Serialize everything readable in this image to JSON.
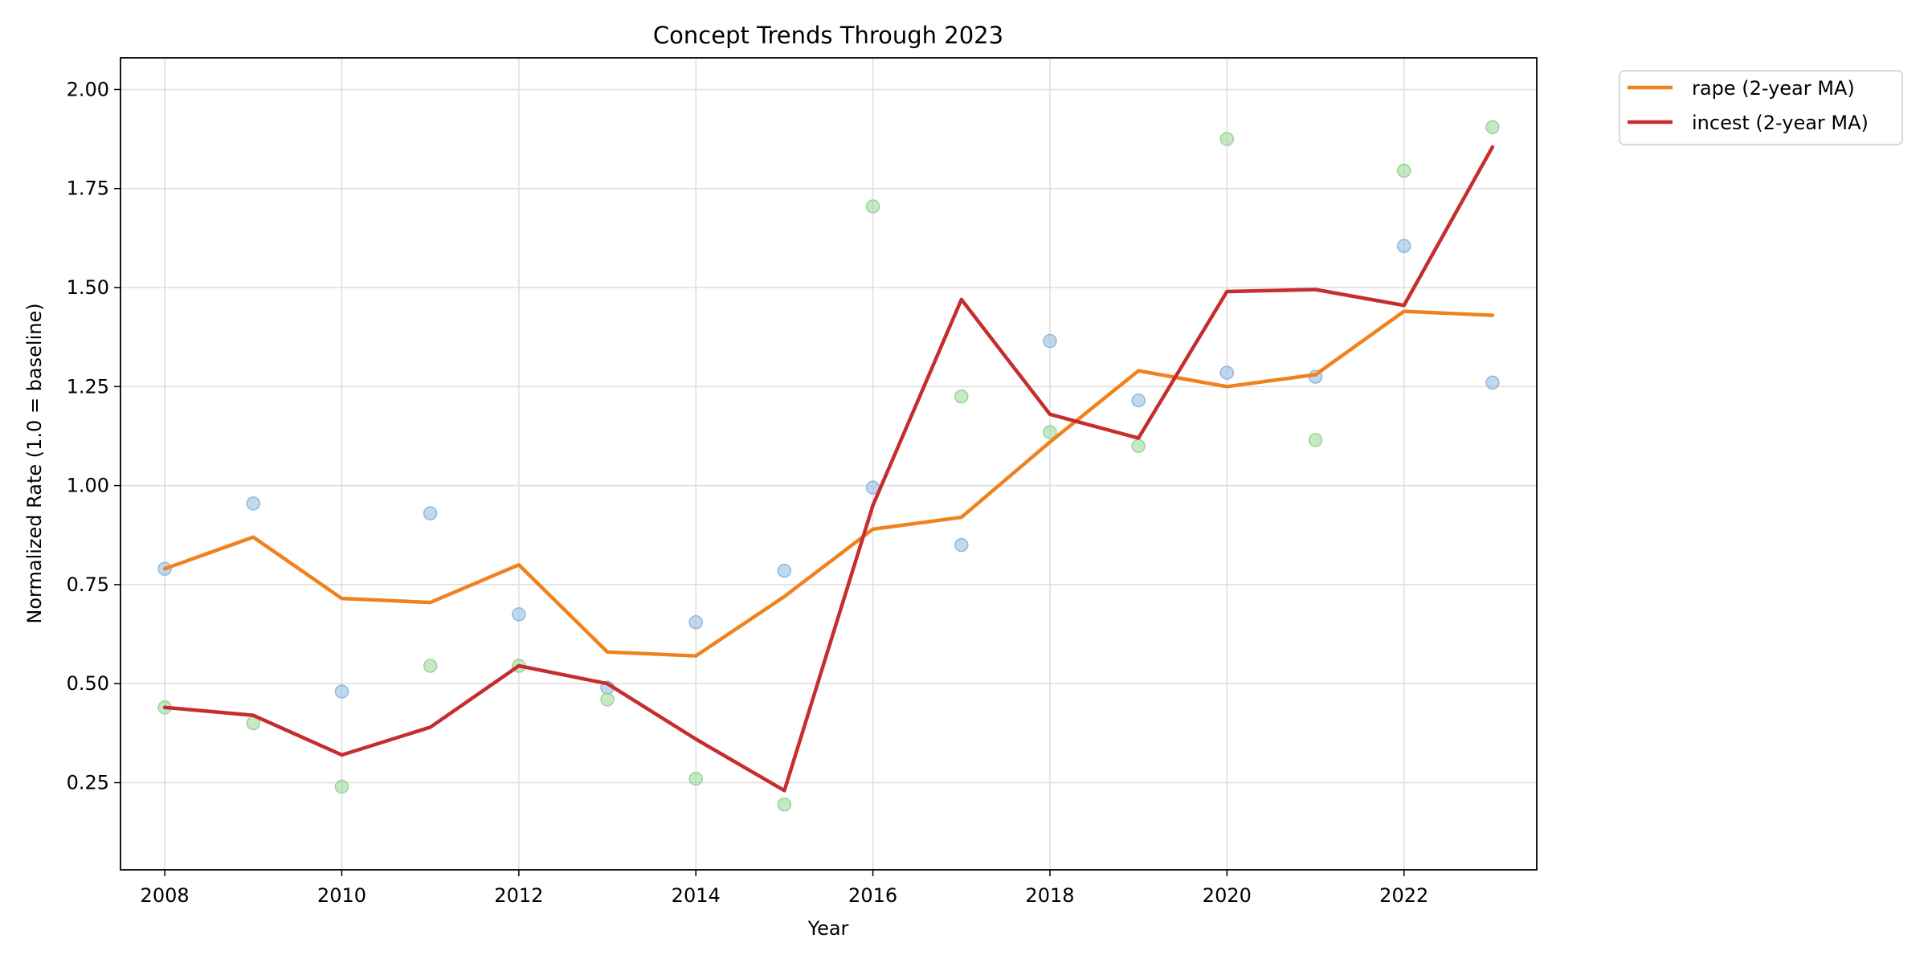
{
  "chart_data": {
    "type": "line",
    "title": "Concept Trends Through 2023",
    "xlabel": "Year",
    "ylabel": "Normalized Rate (1.0 = baseline)",
    "xlim": [
      2007.5,
      2023.5
    ],
    "ylim": [
      0.03,
      2.08
    ],
    "grid": true,
    "legend_position": "outside-top-right",
    "x_ticks": [
      2008,
      2010,
      2012,
      2014,
      2016,
      2018,
      2020,
      2022
    ],
    "x_tick_labels": [
      "2008",
      "2010",
      "2012",
      "2014",
      "2016",
      "2018",
      "2020",
      "2022"
    ],
    "y_ticks": [
      0.25,
      0.5,
      0.75,
      1.0,
      1.25,
      1.5,
      1.75,
      2.0
    ],
    "y_tick_labels": [
      "0.25",
      "0.50",
      "0.75",
      "1.00",
      "1.25",
      "1.50",
      "1.75",
      "2.00"
    ],
    "x": [
      2008,
      2009,
      2010,
      2011,
      2012,
      2013,
      2014,
      2015,
      2016,
      2017,
      2018,
      2019,
      2020,
      2021,
      2022,
      2023
    ],
    "series": [
      {
        "name": "rape (2-year MA)",
        "kind": "line",
        "color": "#f0821e",
        "values": [
          0.79,
          0.87,
          0.715,
          0.705,
          0.8,
          0.58,
          0.57,
          0.72,
          0.89,
          0.92,
          1.11,
          1.29,
          1.25,
          1.28,
          1.44,
          1.43
        ]
      },
      {
        "name": "incest (2-year MA)",
        "kind": "line",
        "color": "#c62d2d",
        "values": [
          0.44,
          0.42,
          0.32,
          0.39,
          0.545,
          0.5,
          0.36,
          0.23,
          0.95,
          1.47,
          1.18,
          1.12,
          1.49,
          1.495,
          1.455,
          1.855
        ]
      },
      {
        "kind": "scatter",
        "color": "#8fb8de",
        "values": [
          0.79,
          0.955,
          0.48,
          0.93,
          0.675,
          0.49,
          0.655,
          0.785,
          0.995,
          0.85,
          1.365,
          1.215,
          1.285,
          1.275,
          1.605,
          1.26
        ]
      },
      {
        "kind": "scatter",
        "color": "#98d594",
        "values": [
          0.44,
          0.4,
          0.24,
          0.545,
          0.545,
          0.46,
          0.26,
          0.195,
          1.705,
          1.225,
          1.135,
          1.1,
          1.875,
          1.115,
          1.795,
          1.905
        ]
      }
    ]
  }
}
